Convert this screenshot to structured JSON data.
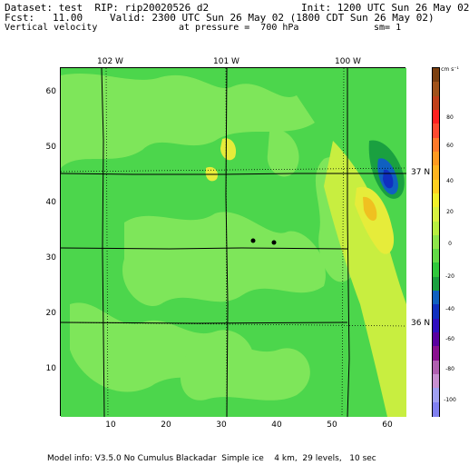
{
  "header": {
    "line1_left": "Dataset: test  RIP: rip20020526 d2",
    "line1_right": "Init: 1200 UTC Sun 26 May 02",
    "line2_left": "Fcst:   11.00",
    "line2_right": "Valid: 2300 UTC Sun 26 May 02 (1800 CDT Sun 26 May 02)",
    "line3_left": "Vertical velocity",
    "line3_mid": "at pressure =  700 hPa",
    "line3_right": "sm= 1"
  },
  "map": {
    "top_labels": [
      "102 W",
      "101 W",
      "100 W"
    ],
    "right_labels": [
      "37 N",
      "36 N"
    ],
    "y_ticks": [
      "60",
      "50",
      "40",
      "30",
      "20",
      "10"
    ],
    "x_ticks": [
      "10",
      "20",
      "30",
      "40",
      "50",
      "60"
    ],
    "colors": {
      "field": "#4cd64c",
      "light": "#7ee65a",
      "yellow": "#e6ec3a",
      "orange": "#f0c020",
      "blue": "#1030c0"
    }
  },
  "colorbar": {
    "unit_label": "cm s⁻¹",
    "labels": [
      "80",
      "60",
      "40",
      "20",
      "0",
      "-20",
      "-40",
      "-60",
      "-80",
      "-100"
    ],
    "colors": [
      "#7b3f10",
      "#a0521a",
      "#c0401a",
      "#ff2020",
      "#ff4a30",
      "#ff7a2a",
      "#ff9a20",
      "#ffb420",
      "#ffd020",
      "#f2f02a",
      "#d8f040",
      "#b8ee40",
      "#8ee64a",
      "#62da46",
      "#30c83c",
      "#1aa040",
      "#1060c0",
      "#1030c0",
      "#3010c0",
      "#5a00a0",
      "#8a1090",
      "#b060b0",
      "#c890d0",
      "#a0a0f0",
      "#8080f0"
    ]
  },
  "footer": {
    "text": "Model info: V3.5.0 No Cumulus Blackadar  Simple ice    4 km,  29 levels,   10 sec"
  }
}
